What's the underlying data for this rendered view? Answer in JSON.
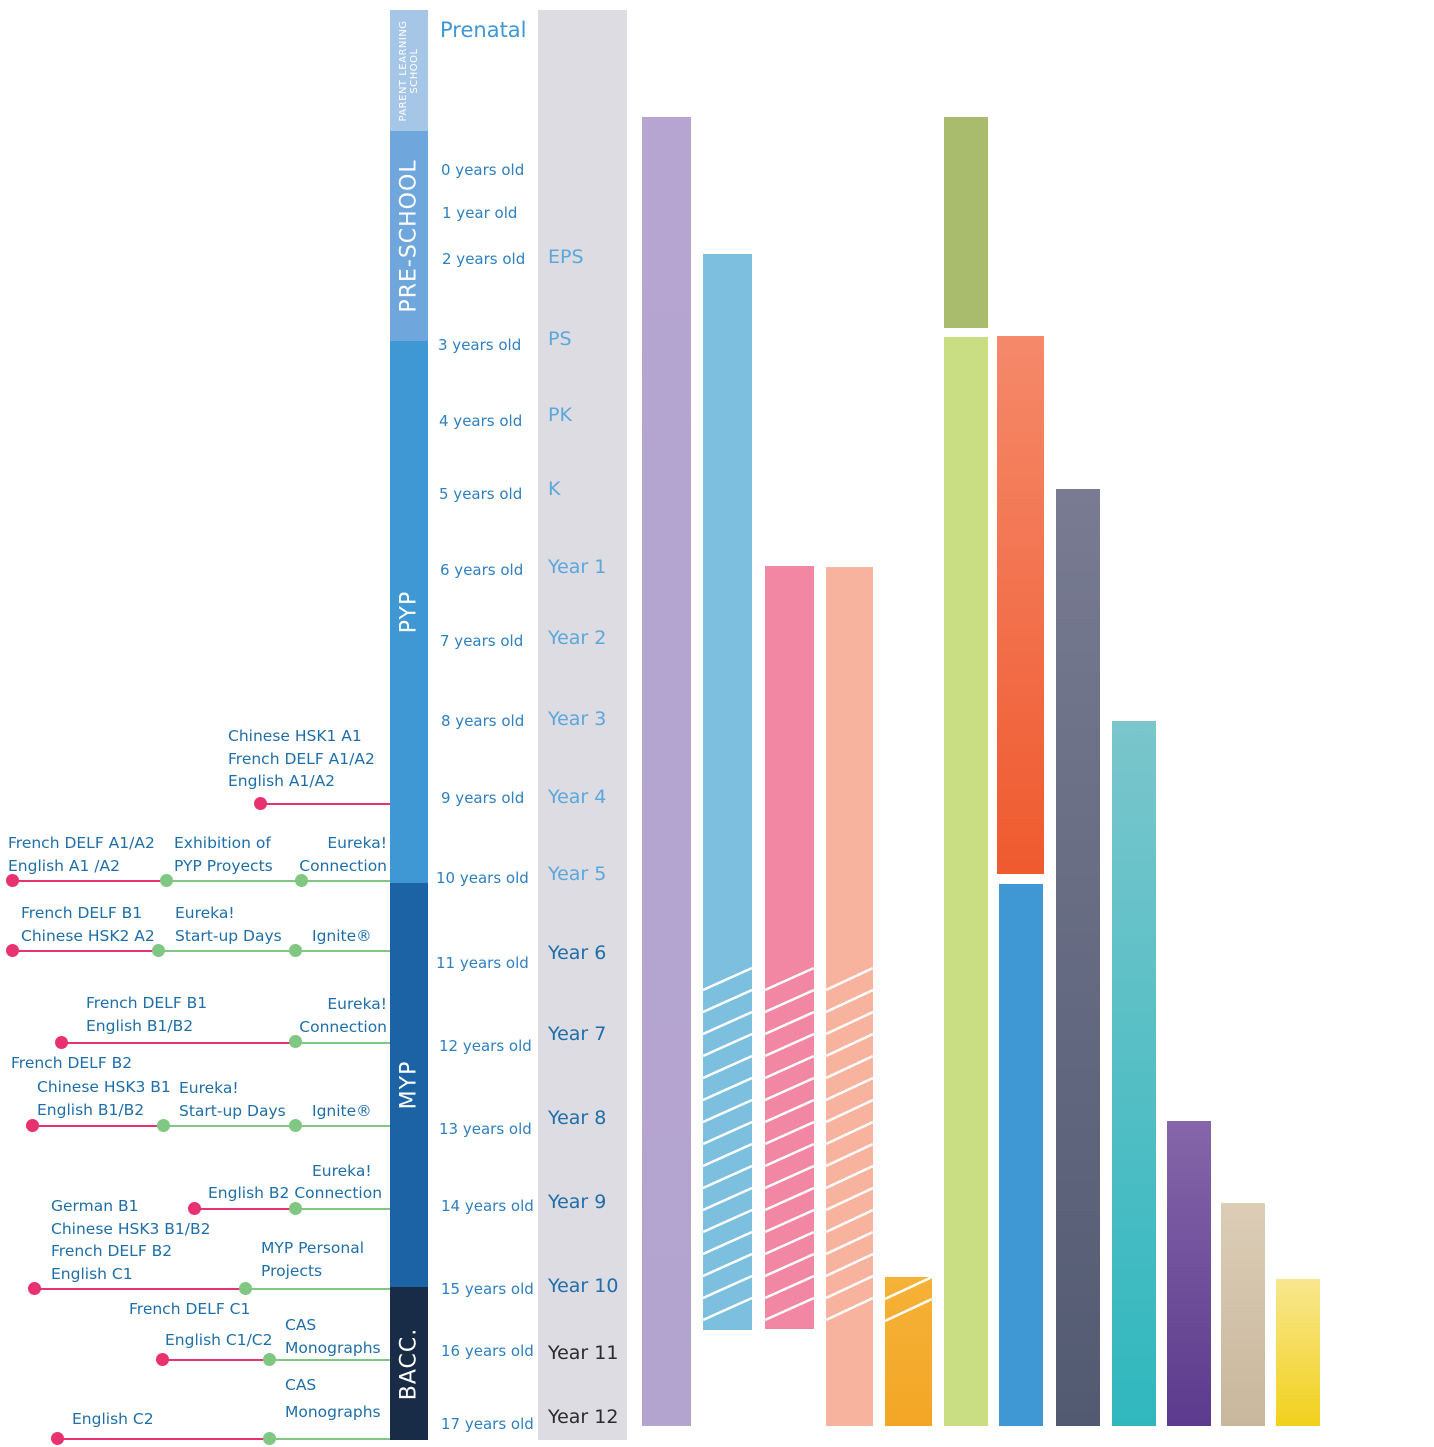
{
  "stages": [
    {
      "label": "PARENT LEARNING\nSCHOOL",
      "color": "#a6c6e8"
    },
    {
      "label": "PRE-SCHOOL",
      "color": "#6fa7dc"
    },
    {
      "label": "PYP",
      "color": "#3f97d3"
    },
    {
      "label": "MYP",
      "color": "#1c63a5"
    },
    {
      "label": "BACC.",
      "color": "#182c47"
    }
  ],
  "prenatal_label": "Prenatal",
  "ages": [
    "0 years old",
    "1 year old",
    "2 years old",
    "3 years old",
    "4 years old",
    "5 years old",
    "6 years old",
    "7 years old",
    "8 years old",
    "9 years old",
    "10 years old",
    "11 years old",
    "12 years old",
    "13 years old",
    "14 years old",
    "15 years old",
    "16 years old",
    "17 years old"
  ],
  "grades": [
    "EPS",
    "PS",
    "PK",
    "K",
    "Year 1",
    "Year 2",
    "Year 3",
    "Year 4",
    "Year 5",
    "Year 6",
    "Year 7",
    "Year 8",
    "Year 9",
    "Year 10",
    "Year 11",
    "Year 12"
  ],
  "bars": [
    {
      "color": "#b5a5d0"
    },
    {
      "color": "#7cbfde"
    },
    {
      "color": "#f287a3"
    },
    {
      "color": "#f8b39e"
    },
    {
      "color": "#f5ae30"
    },
    {
      "color": "#a9bc6d"
    },
    {
      "color": "#c9dd82"
    },
    {
      "color": "#f5896a"
    },
    {
      "color": "#3f97d3"
    },
    {
      "color": "#6d7088"
    },
    {
      "color": "#5ec3c8"
    },
    {
      "color": "#7b5aa2"
    },
    {
      "color": "#d6c6ae"
    },
    {
      "color": "#f6df70"
    }
  ],
  "notes": {
    "n1": "Chinese HSK1 A1\nFrench DELF A1/A2\nEnglish A1/A2",
    "n2": "French DELF A1/A2\nEnglish A1 /A2",
    "n3": "Exhibition of\nPYP Proyects",
    "n4": "Eureka!\nConnection",
    "n5": "French DELF B1\nChinese HSK2 A2",
    "n6": "Eureka!\nStart-up Days",
    "n7": "Ignite®",
    "n8": "French DELF B1\nEnglish B1/B2",
    "n9": "Eureka!\nConnection",
    "n10": "French DELF B2",
    "n11": "Chinese HSK3 B1\nEnglish B1/B2",
    "n12": "Eureka!\nStart-up Days",
    "n13": "Ignite®",
    "n14": "Eureka!",
    "n15": "English B2 Connection",
    "n16": "German B1\nChinese HSK3 B1/B2\nFrench DELF B2\nEnglish C1",
    "n17": "MYP Personal\nProjects",
    "n18": "French DELF C1",
    "n19": "English C1/C2",
    "n20": "CAS\nMonographs",
    "n21": "CAS",
    "n22": "English C2",
    "n23": "Monographs"
  }
}
